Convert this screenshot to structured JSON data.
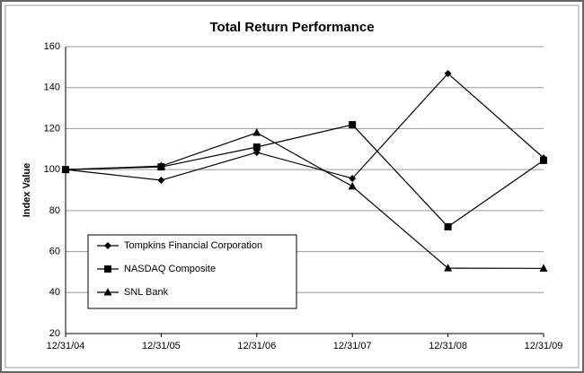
{
  "chart_data": {
    "type": "line",
    "title": "Total Return Performance",
    "y_label": "Index Value",
    "categories": [
      "12/31/04",
      "12/31/05",
      "12/31/06",
      "12/31/07",
      "12/31/08",
      "12/31/09"
    ],
    "series": [
      {
        "name": "Tompkins Financial Corporation",
        "color": "#000000",
        "marker": "diamond",
        "values": [
          100,
          94.8,
          108.4,
          95.7,
          146.9,
          105.7
        ]
      },
      {
        "name": "NASDAQ Composite",
        "color": "#000000",
        "marker": "square",
        "values": [
          100,
          101.3,
          111,
          121.9,
          72.1,
          104.5
        ]
      },
      {
        "name": "SNL Bank",
        "color": "#000000",
        "marker": "triangle",
        "values": [
          100,
          101.7,
          118,
          91.8,
          51.9,
          51.8
        ]
      }
    ],
    "ylim": [
      20,
      160
    ],
    "yticks": [
      20,
      40,
      60,
      80,
      100,
      120,
      140,
      160
    ],
    "grid": true,
    "legend": "lower-left"
  }
}
